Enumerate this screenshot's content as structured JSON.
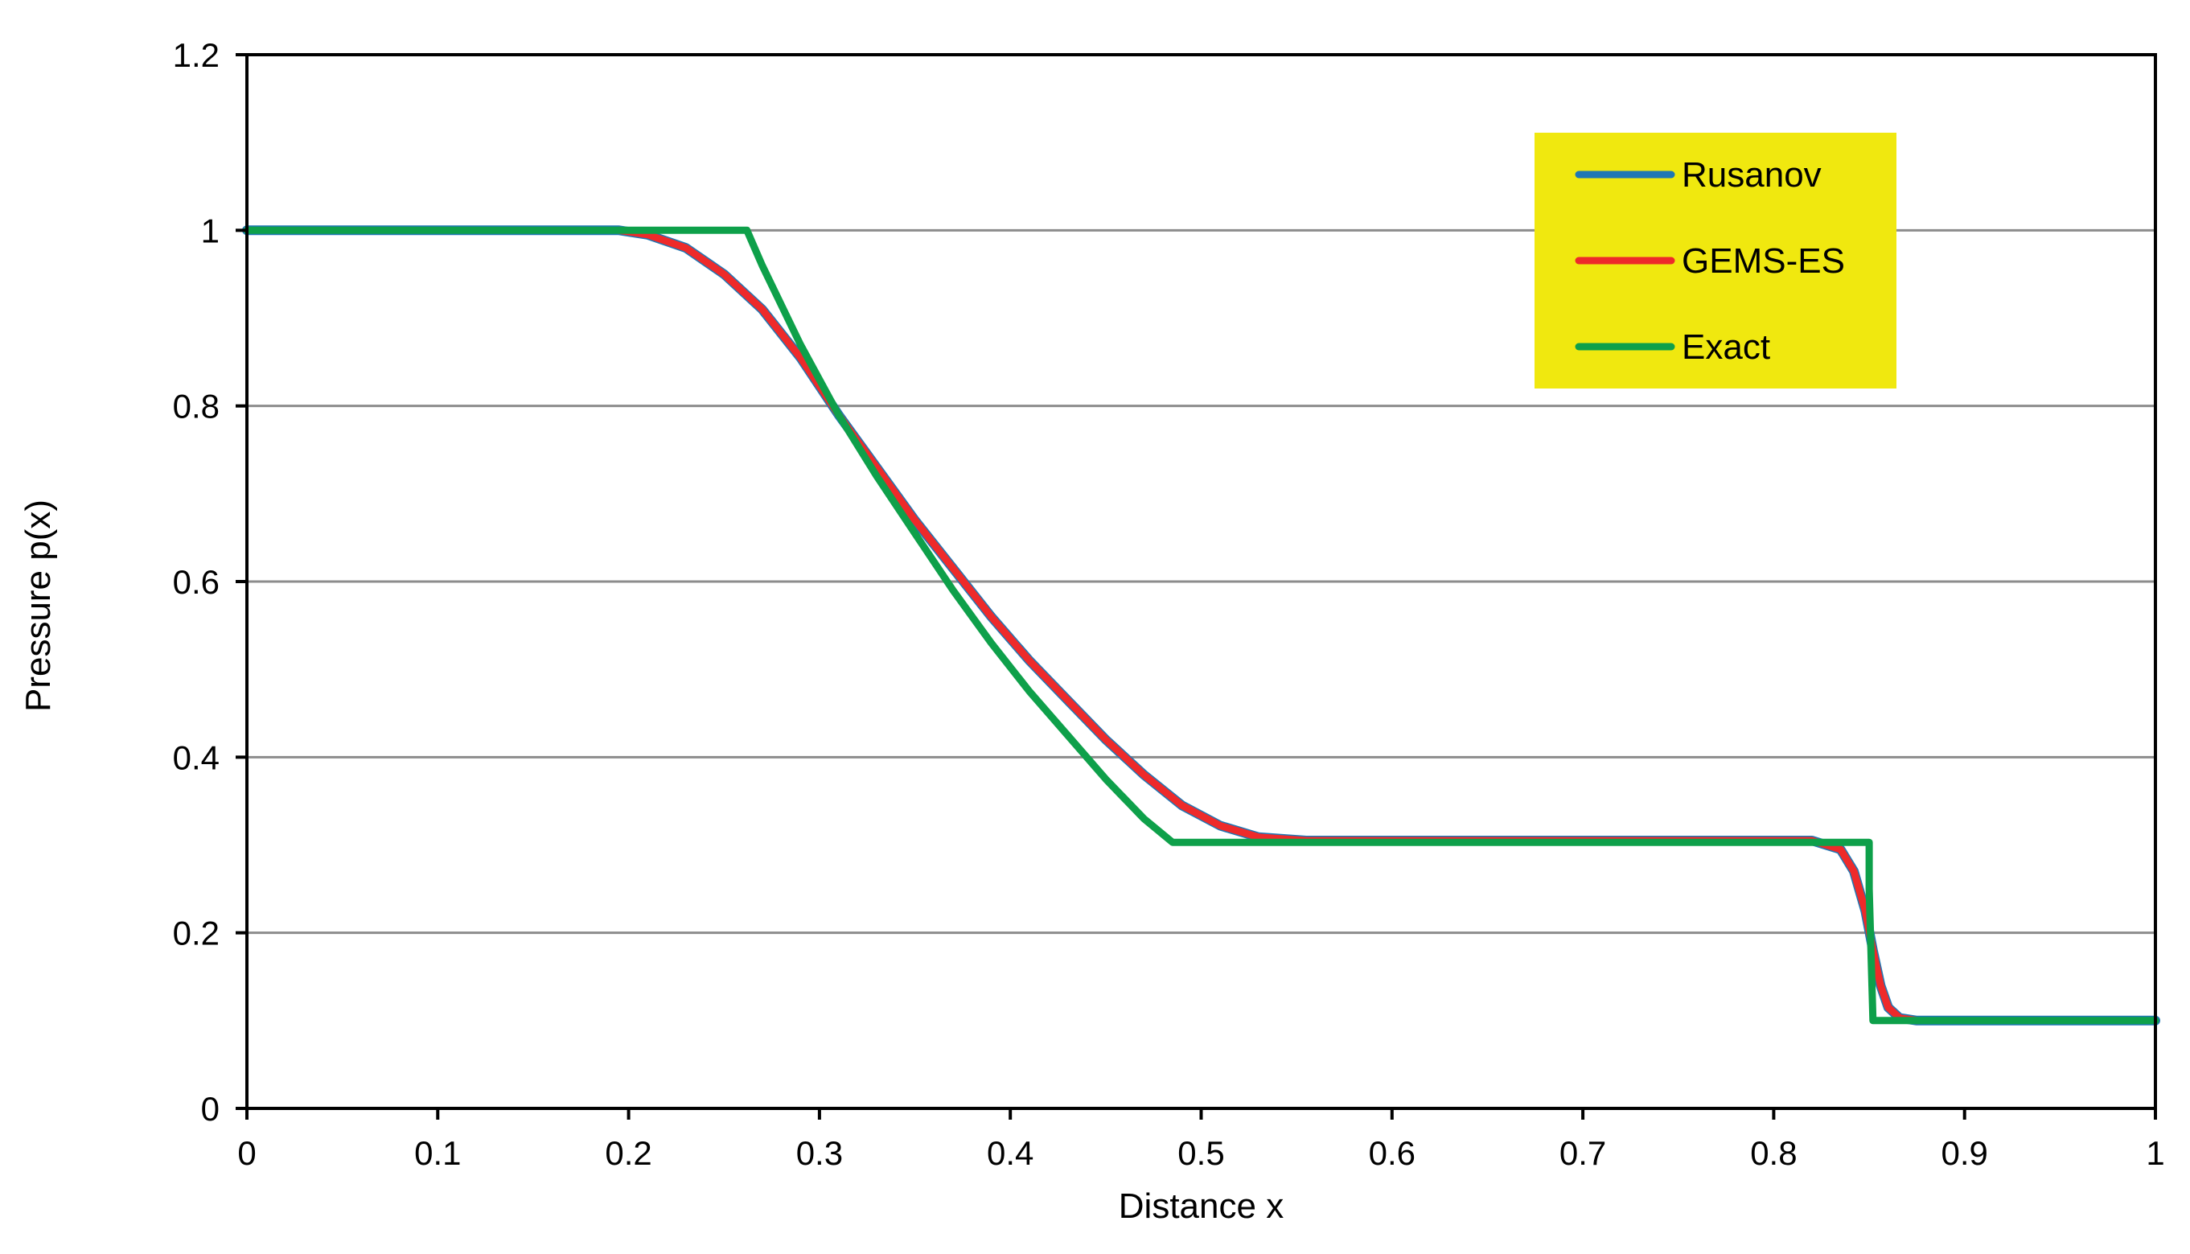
{
  "chart_data": {
    "type": "line",
    "title": "",
    "xlabel": "Distance x",
    "ylabel": "Pressure  p(x)",
    "xlim": [
      0,
      1
    ],
    "ylim": [
      0,
      1.2
    ],
    "xticks": [
      "0",
      "0.1",
      "0.2",
      "0.3",
      "0.4",
      "0.5",
      "0.6",
      "0.7",
      "0.8",
      "0.9",
      "1"
    ],
    "yticks": [
      "0",
      "0.2",
      "0.4",
      "0.6",
      "0.8",
      "1",
      "1.2"
    ],
    "grid": "horizontal",
    "legend_position": "top-right",
    "legend_background": "#f0e80f",
    "series": [
      {
        "name": "Rusanov",
        "color": "#1f77b4",
        "x": [
          0,
          0.195,
          0.21,
          0.23,
          0.25,
          0.27,
          0.29,
          0.31,
          0.33,
          0.35,
          0.37,
          0.39,
          0.41,
          0.43,
          0.45,
          0.47,
          0.49,
          0.51,
          0.53,
          0.555,
          0.82,
          0.835,
          0.842,
          0.848,
          0.852,
          0.856,
          0.86,
          0.866,
          0.875,
          1.0
        ],
        "y": [
          1.0,
          1.0,
          0.995,
          0.98,
          0.95,
          0.91,
          0.855,
          0.79,
          0.73,
          0.67,
          0.615,
          0.56,
          0.51,
          0.465,
          0.42,
          0.38,
          0.345,
          0.322,
          0.309,
          0.305,
          0.305,
          0.295,
          0.27,
          0.225,
          0.18,
          0.14,
          0.115,
          0.103,
          0.1,
          0.1
        ]
      },
      {
        "name": "GEMS-ES",
        "color": "#ee2a2a",
        "x": [
          0.195,
          0.21,
          0.23,
          0.25,
          0.27,
          0.29,
          0.31,
          0.33,
          0.35,
          0.37,
          0.39,
          0.41,
          0.43,
          0.45,
          0.47,
          0.49,
          0.51,
          0.53,
          0.555,
          0.82,
          0.835,
          0.842,
          0.848,
          0.852,
          0.856,
          0.86,
          0.866,
          0.875
        ],
        "y": [
          1.0,
          0.995,
          0.98,
          0.95,
          0.91,
          0.855,
          0.79,
          0.73,
          0.67,
          0.615,
          0.56,
          0.51,
          0.465,
          0.42,
          0.38,
          0.345,
          0.322,
          0.309,
          0.305,
          0.305,
          0.295,
          0.27,
          0.225,
          0.18,
          0.14,
          0.115,
          0.103,
          0.1
        ]
      },
      {
        "name": "Exact",
        "color": "#0ea04a",
        "x": [
          0,
          0.262,
          0.27,
          0.29,
          0.31,
          0.33,
          0.35,
          0.37,
          0.39,
          0.41,
          0.43,
          0.45,
          0.47,
          0.485,
          0.85,
          0.85,
          0.852,
          1.0
        ],
        "y": [
          1.0,
          1.0,
          0.96,
          0.87,
          0.79,
          0.72,
          0.655,
          0.59,
          0.53,
          0.475,
          0.425,
          0.375,
          0.33,
          0.303,
          0.303,
          0.25,
          0.1,
          0.1
        ]
      }
    ]
  }
}
